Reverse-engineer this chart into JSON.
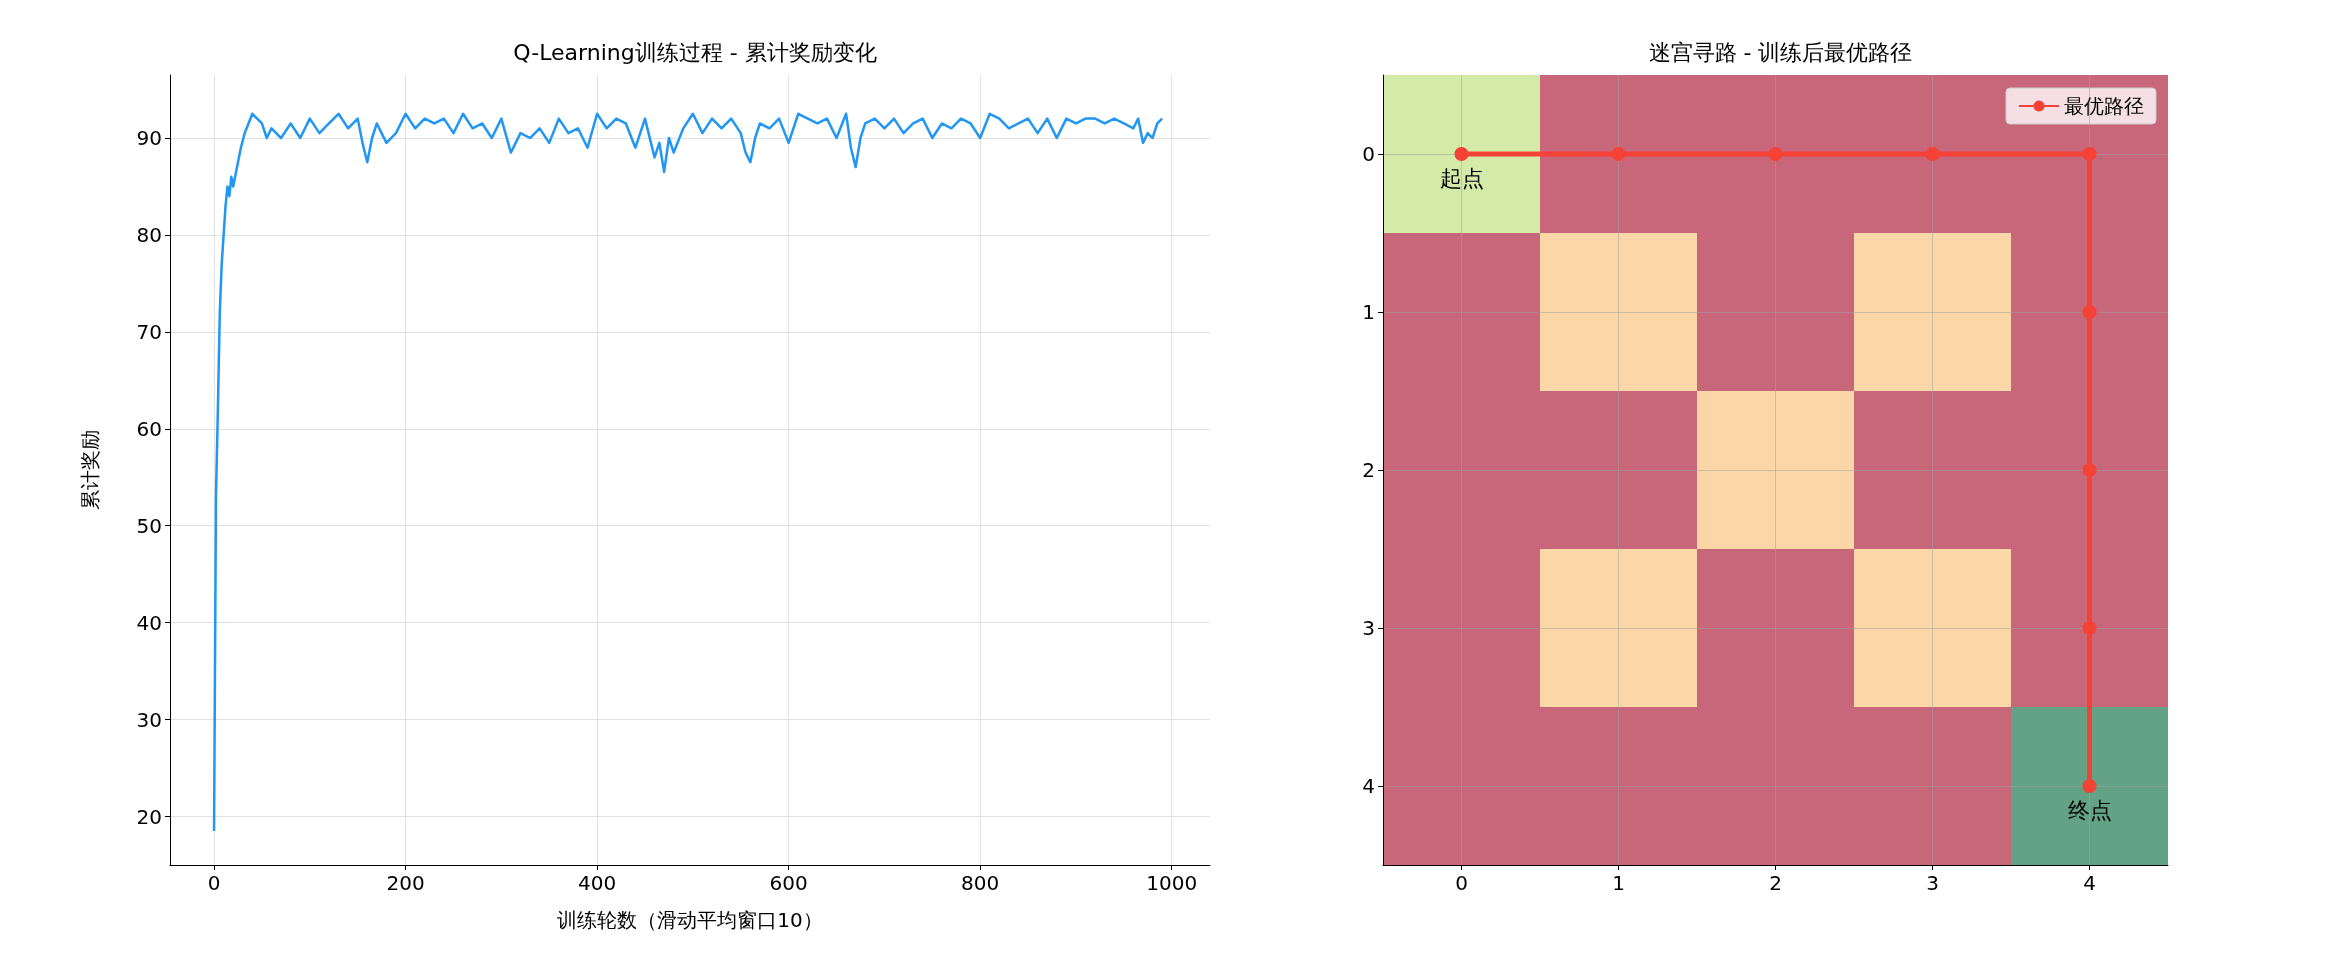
{
  "chart_data": [
    {
      "type": "line",
      "title": "Q-Learning训练过程 - 累计奖励变化",
      "xlabel": "训练轮数（滑动平均窗口10）",
      "ylabel": "累计奖励",
      "grid": true,
      "xlim": [
        -46,
        1040
      ],
      "ylim": [
        15,
        96.5
      ],
      "xticks": [
        0,
        200,
        400,
        600,
        800,
        {
          "value": 1000,
          "label": "1000"
        }
      ],
      "yticks": [
        20,
        30,
        40,
        50,
        60,
        70,
        80,
        90
      ],
      "series": [
        {
          "color": "#2196f3",
          "x": [
            0,
            2,
            4,
            6,
            8,
            10,
            12,
            14,
            16,
            18,
            20,
            24,
            28,
            32,
            36,
            40,
            45,
            50,
            55,
            60,
            70,
            80,
            90,
            100,
            110,
            120,
            130,
            140,
            150,
            155,
            160,
            165,
            170,
            180,
            190,
            200,
            210,
            220,
            230,
            240,
            250,
            260,
            270,
            280,
            290,
            300,
            310,
            320,
            330,
            340,
            350,
            360,
            370,
            380,
            390,
            400,
            410,
            420,
            430,
            440,
            450,
            460,
            465,
            470,
            475,
            480,
            490,
            500,
            510,
            520,
            530,
            540,
            550,
            555,
            560,
            565,
            570,
            580,
            590,
            600,
            610,
            620,
            630,
            640,
            650,
            660,
            665,
            670,
            675,
            680,
            690,
            700,
            710,
            720,
            730,
            740,
            750,
            760,
            770,
            780,
            790,
            800,
            810,
            820,
            830,
            840,
            850,
            860,
            870,
            880,
            890,
            900,
            910,
            920,
            930,
            940,
            950,
            960,
            965,
            970,
            975,
            980,
            985,
            990
          ],
          "values": [
            18.5,
            53,
            62,
            72,
            77,
            80,
            83,
            85,
            84,
            86,
            85,
            87,
            89,
            90.5,
            91.5,
            92.5,
            92,
            91.5,
            90,
            91,
            90,
            91.5,
            90,
            92,
            90.5,
            91.5,
            92.5,
            91,
            92,
            89.5,
            87.5,
            90,
            91.5,
            89.5,
            90.5,
            92.5,
            91,
            92,
            91.5,
            92,
            90.5,
            92.5,
            91,
            91.5,
            90,
            92,
            88.5,
            90.5,
            90,
            91,
            89.5,
            92,
            90.5,
            91,
            89,
            92.5,
            91,
            92,
            91.5,
            89,
            92,
            88,
            89.5,
            86.5,
            90,
            88.5,
            91,
            92.5,
            90.5,
            92,
            91,
            92,
            90.5,
            88.5,
            87.5,
            90,
            91.5,
            91,
            92,
            89.5,
            92.5,
            92,
            91.5,
            92,
            90,
            92.5,
            89,
            87,
            90,
            91.5,
            92,
            91,
            92,
            90.5,
            91.5,
            92,
            90,
            91.5,
            91,
            92,
            91.5,
            90,
            92.5,
            92,
            91,
            91.5,
            92,
            90.5,
            92,
            90,
            92,
            91.5,
            92,
            92,
            91.5,
            92,
            91.5,
            91,
            92,
            89.5,
            90.5,
            90,
            91.5,
            92
          ]
        }
      ]
    },
    {
      "type": "line",
      "title": "迷宫寻路 - 训练后最优路径",
      "xlim": [
        -0.5,
        4.5
      ],
      "xticks": [
        0,
        1,
        2,
        3,
        4
      ],
      "ylim": [
        4.5,
        -0.5
      ],
      "yticks": [
        0,
        1,
        2,
        3,
        4
      ],
      "grid": true,
      "legend": "top right",
      "annotations": [
        {
          "text": "起点",
          "x": 0,
          "y": 0
        },
        {
          "text": "终点",
          "x": 4,
          "y": 4
        }
      ],
      "series": [
        {
          "type": "bar",
          "x": [
            0,
            1,
            2,
            3,
            4
          ],
          "values": [
            1,
            1,
            2,
            1,
            4
          ],
          "base": [
            -0.5,
            -0.5,
            -0.5,
            -0.5,
            -0.5
          ],
          "colors": [
            "#d3eaa8",
            "#c8667a",
            "#c8667a",
            "#c8667a",
            "#c8667a"
          ]
        },
        {
          "type": "bar",
          "x": [
            0,
            1,
            2,
            3,
            4
          ],
          "values": [
            4,
            1,
            1,
            1,
            1
          ],
          "base": [
            0.5,
            0.5,
            1.5,
            0.5,
            3.5
          ],
          "colors": [
            "#c8667a",
            "#fbd7a8",
            "#fbd7a8",
            "#fbd7a8",
            "#63a285"
          ]
        },
        {
          "type": "bar",
          "x": [
            1,
            2,
            3
          ],
          "values": [
            1,
            2,
            1
          ],
          "base": [
            1.5,
            2.5,
            1.5
          ],
          "colors": [
            "#c8667a",
            "#c8667a",
            "#c8667a"
          ]
        },
        {
          "type": "bar",
          "x": [
            1,
            3
          ],
          "values": [
            1,
            1
          ],
          "base": [
            2.5,
            2.5
          ],
          "colors": [
            "#fbd7a8",
            "#fbd7a8"
          ]
        },
        {
          "type": "bar",
          "x": [
            1,
            3
          ],
          "values": [
            1,
            1
          ],
          "base": [
            3.5,
            3.5
          ],
          "colors": [
            "#c8667a",
            "#c8667a"
          ]
        },
        {
          "type": "line",
          "name": "最优路径",
          "color": "#f44336",
          "marker": "circle",
          "x": [
            0,
            1,
            2,
            3,
            4,
            4,
            4,
            4,
            4
          ],
          "values": [
            0,
            0,
            0,
            0,
            0,
            1,
            2,
            3,
            4
          ]
        }
      ]
    }
  ]
}
